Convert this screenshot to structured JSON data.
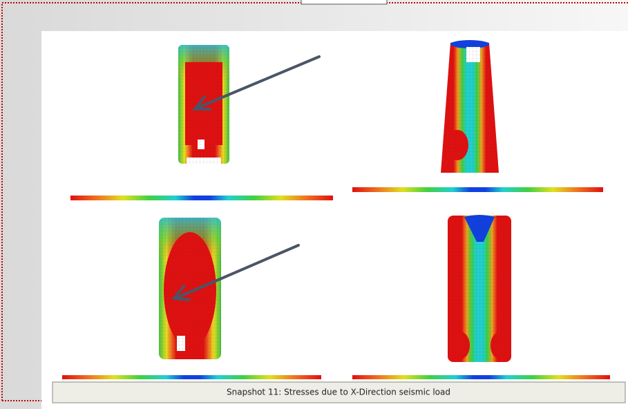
{
  "figure": {
    "caption": "Snapshot 11: Stresses due to X-Direction seismic load"
  }
}
